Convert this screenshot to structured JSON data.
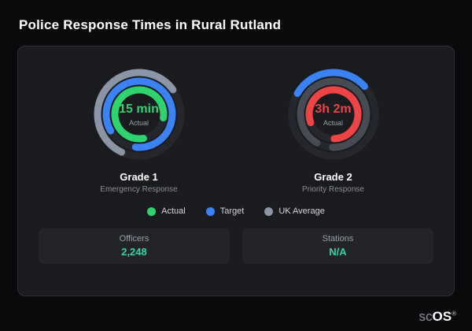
{
  "page": {
    "title": "Police Response Times in Rural Rutland",
    "brand": {
      "prefix": "sc",
      "suffix": "OS",
      "registered": "®"
    }
  },
  "legend": {
    "items": [
      {
        "label": "Actual",
        "color": "#2fd36d"
      },
      {
        "label": "Target",
        "color": "#3b82f6"
      },
      {
        "label": "UK Average",
        "color": "#8b95a5"
      }
    ]
  },
  "stats": {
    "value_color": "#35d6a2",
    "items": [
      {
        "label": "Officers",
        "value": "2,248"
      },
      {
        "label": "Stations",
        "value": "N/A"
      }
    ]
  },
  "chart_data": {
    "type": "gauge",
    "title": "Police Response Times in Rural Rutland",
    "legend_entries": [
      "Actual",
      "Target",
      "UK Average"
    ],
    "gauges": [
      {
        "title": "Grade 1",
        "subtitle": "Emergency Response",
        "center_value": "15 min",
        "center_label": "Actual",
        "center_color": "#2fd36d",
        "rings": [
          {
            "name": "UK Average",
            "color": "#8b95a5",
            "fraction": 0.58,
            "start_deg": 205
          },
          {
            "name": "Target",
            "color": "#3b82f6",
            "fraction": 0.85,
            "start_deg": 240
          },
          {
            "name": "Actual",
            "color": "#2fd36d",
            "fraction": 0.8,
            "start_deg": 170
          }
        ]
      },
      {
        "title": "Grade 2",
        "subtitle": "Priority Response",
        "center_value": "3h 2m",
        "center_label": "Actual",
        "center_color": "#ef4444",
        "rings": [
          {
            "name": "Target",
            "color": "#3b82f6",
            "fraction": 0.3,
            "start_deg": 300
          },
          {
            "name": "UK Average",
            "color": "#464b54",
            "fraction": 0.92,
            "start_deg": 210
          },
          {
            "name": "Actual",
            "color": "#ef4444",
            "fraction": 0.8,
            "start_deg": 250
          }
        ]
      }
    ]
  }
}
